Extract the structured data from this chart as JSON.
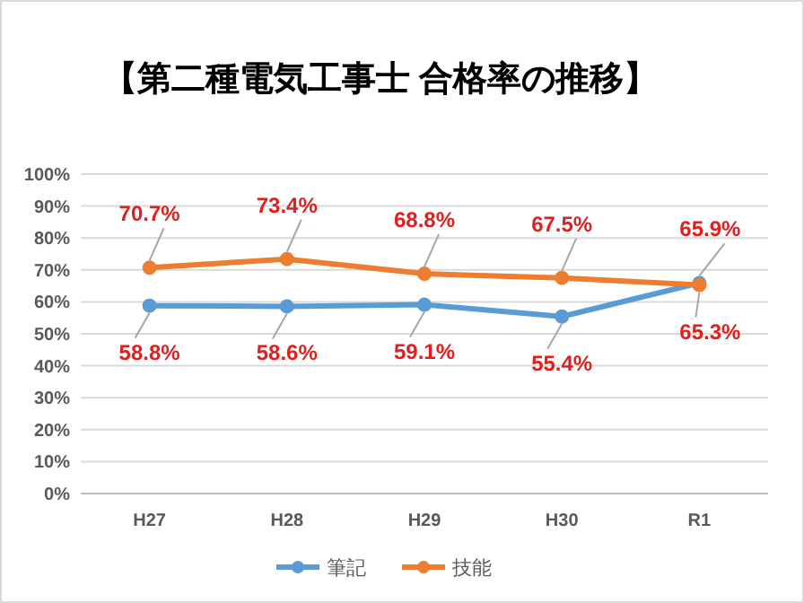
{
  "chart_data": {
    "type": "line",
    "title": "【第二種電気工事士 合格率の推移】",
    "categories": [
      "H27",
      "H28",
      "H29",
      "H30",
      "R1"
    ],
    "series": [
      {
        "name": "筆記",
        "color": "#5b9bd5",
        "values": [
          58.8,
          58.6,
          59.1,
          55.4,
          65.9
        ],
        "value_labels": [
          "58.8%",
          "58.6%",
          "59.1%",
          "55.4%",
          "65.9%"
        ]
      },
      {
        "name": "技能",
        "color": "#ed7d31",
        "values": [
          70.7,
          73.4,
          68.8,
          67.5,
          65.3
        ],
        "value_labels": [
          "70.7%",
          "73.4%",
          "68.8%",
          "67.5%",
          "65.3%"
        ]
      }
    ],
    "ylim": [
      0,
      100
    ],
    "yticks": [
      {
        "value": 0,
        "label": "0%"
      },
      {
        "value": 10,
        "label": "10%"
      },
      {
        "value": 20,
        "label": "20%"
      },
      {
        "value": 30,
        "label": "30%"
      },
      {
        "value": 40,
        "label": "40%"
      },
      {
        "value": 50,
        "label": "50%"
      },
      {
        "value": 60,
        "label": "60%"
      },
      {
        "value": 70,
        "label": "70%"
      },
      {
        "value": 80,
        "label": "80%"
      },
      {
        "value": 90,
        "label": "90%"
      },
      {
        "value": 100,
        "label": "100%"
      }
    ],
    "grid": "y",
    "legend": "bottom",
    "marker": "circle",
    "line_style": "solid"
  }
}
